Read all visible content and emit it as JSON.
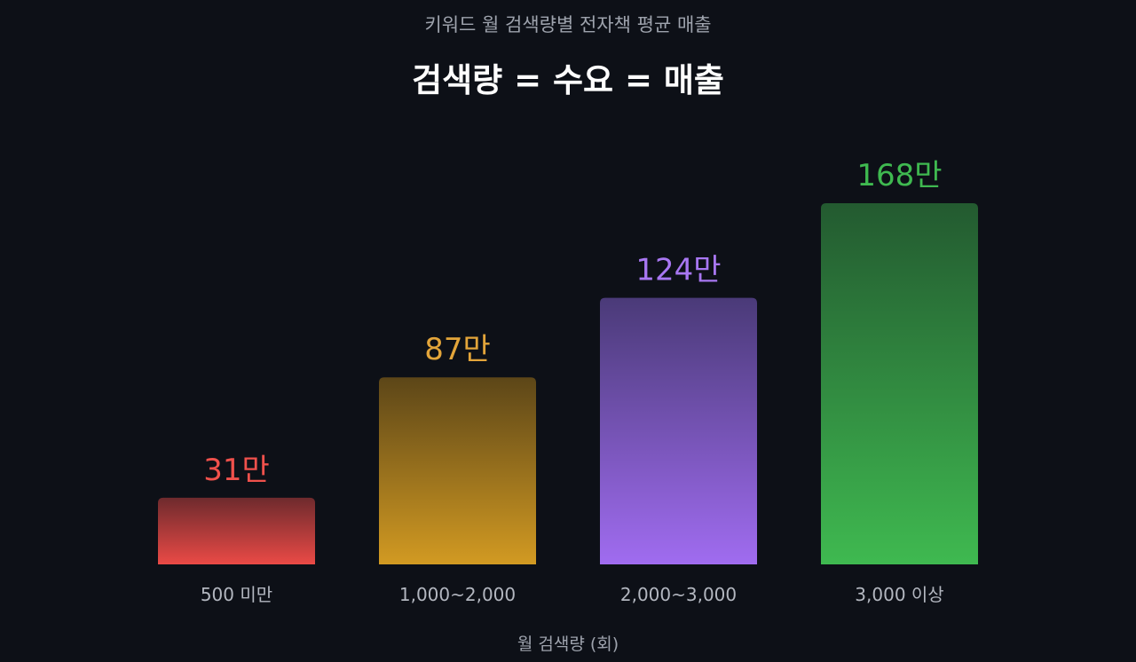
{
  "subtitle": "키워드 월 검색량별 전자책 평균 매출",
  "title": "검색량 = 수요 = 매출",
  "chart_data": {
    "type": "bar",
    "categories": [
      "500 미만",
      "1,000~2,000",
      "2,000~3,000",
      "3,000 이상"
    ],
    "values": [
      31,
      87,
      124,
      168
    ],
    "data_labels": [
      "31만",
      "87만",
      "124만",
      "168만"
    ],
    "xlabel": "월 검색량 (회)",
    "ylabel": "",
    "ylim": [
      0,
      168
    ],
    "grid": false,
    "legend": "none",
    "colors": [
      {
        "top": "#6e2a2d",
        "bottom": "#ea4a46",
        "label": "#f0514c"
      },
      {
        "top": "#5c4618",
        "bottom": "#d29a22",
        "label": "#e3a53a"
      },
      {
        "top": "#4a3a78",
        "bottom": "#a06cf0",
        "label": "#a877f2"
      },
      {
        "top": "#235a30",
        "bottom": "#3fb950",
        "label": "#3fb950"
      }
    ]
  }
}
